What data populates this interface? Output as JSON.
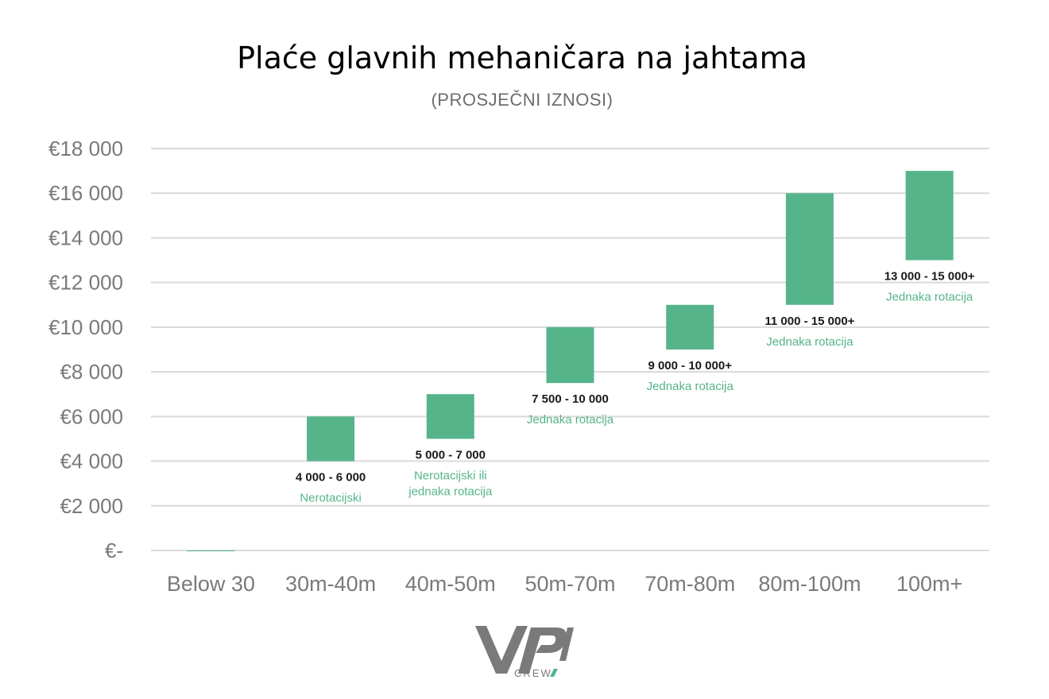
{
  "chart_data": {
    "type": "bar",
    "subtype": "floating-range",
    "title": "Plaće glavnih mehaničara na jahtama",
    "subtitle": "(PROSJEČNI IZNOSI)",
    "xlabel": "",
    "ylabel": "",
    "ylim": [
      0,
      18000
    ],
    "y_ticks": [
      "€-",
      "€2 000",
      "€4 000",
      "€6 000",
      "€8 000",
      "€10 000",
      "€12 000",
      "€14 000",
      "€16 000",
      "€18 000"
    ],
    "grid": true,
    "bar_color": "#55b48a",
    "categories": [
      "Below 30",
      "30m-40m",
      "40m-50m",
      "50m-70m",
      "70m-80m",
      "80m-100m",
      "100m+"
    ],
    "ranges": [
      {
        "low": 0,
        "high": 0,
        "label": "",
        "note_lines": []
      },
      {
        "low": 4000,
        "high": 6000,
        "label": "4 000 - 6 000",
        "note_lines": [
          "Nerotacijski"
        ]
      },
      {
        "low": 5000,
        "high": 7000,
        "label": "5 000 - 7 000",
        "note_lines": [
          "Nerotacijski ili",
          "jednaka rotacija"
        ]
      },
      {
        "low": 7500,
        "high": 10000,
        "label": "7 500 - 10 000",
        "note_lines": [
          "Jednaka rotacija"
        ]
      },
      {
        "low": 9000,
        "high": 11000,
        "label": "9 000 - 10 000+",
        "note_lines": [
          "Jednaka rotacija"
        ]
      },
      {
        "low": 11000,
        "high": 16000,
        "label": "11 000 - 15 000+",
        "note_lines": [
          "Jednaka rotacija"
        ]
      },
      {
        "low": 13000,
        "high": 17000,
        "label": "13 000 - 15 000+",
        "note_lines": [
          "Jednaka rotacija"
        ]
      }
    ]
  },
  "logo": {
    "mark": "VPI",
    "text": "CREW",
    "color": "#7a7a7a",
    "accent": "#55b48a"
  }
}
